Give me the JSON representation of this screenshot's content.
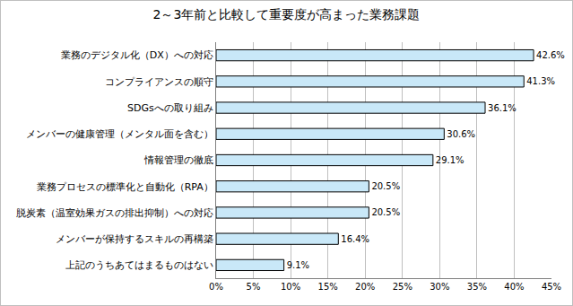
{
  "chart_data": {
    "type": "bar",
    "orientation": "horizontal",
    "title": "2～3年前と比較して重要度が高まった業務課題",
    "categories": [
      "業務のデジタル化（DX）への対応",
      "コンプライアンスの順守",
      "SDGsへの取り組み",
      "メンバーの健康管理（メンタル面を含む）",
      "情報管理の徹底",
      "業務プロセスの標準化と自動化（RPA）",
      "脱炭素（温室効果ガスの排出抑制）への対応",
      "メンバーが保持するスキルの再構築",
      "上記のうちあてはまるものはない"
    ],
    "values": [
      42.6,
      41.3,
      36.1,
      30.6,
      29.1,
      20.5,
      20.5,
      16.4,
      9.1
    ],
    "value_labels": [
      "42.6%",
      "41.3%",
      "36.1%",
      "30.6%",
      "29.1%",
      "20.5%",
      "20.5%",
      "16.4%",
      "9.1%"
    ],
    "data_labels": true,
    "color": "#c9e8f8",
    "xlim": [
      0,
      45
    ],
    "xticks": [
      {
        "value": 0,
        "label": "0%"
      },
      {
        "value": 5,
        "label": "5%"
      },
      {
        "value": 10,
        "label": "10%"
      },
      {
        "value": 15,
        "label": "15%"
      },
      {
        "value": 20,
        "label": "20%"
      },
      {
        "value": 25,
        "label": "25%"
      },
      {
        "value": 30,
        "label": "30%"
      },
      {
        "value": 35,
        "label": "35%"
      },
      {
        "value": 40,
        "label": "40%"
      },
      {
        "value": 45,
        "label": "45%"
      }
    ],
    "grid": true
  }
}
